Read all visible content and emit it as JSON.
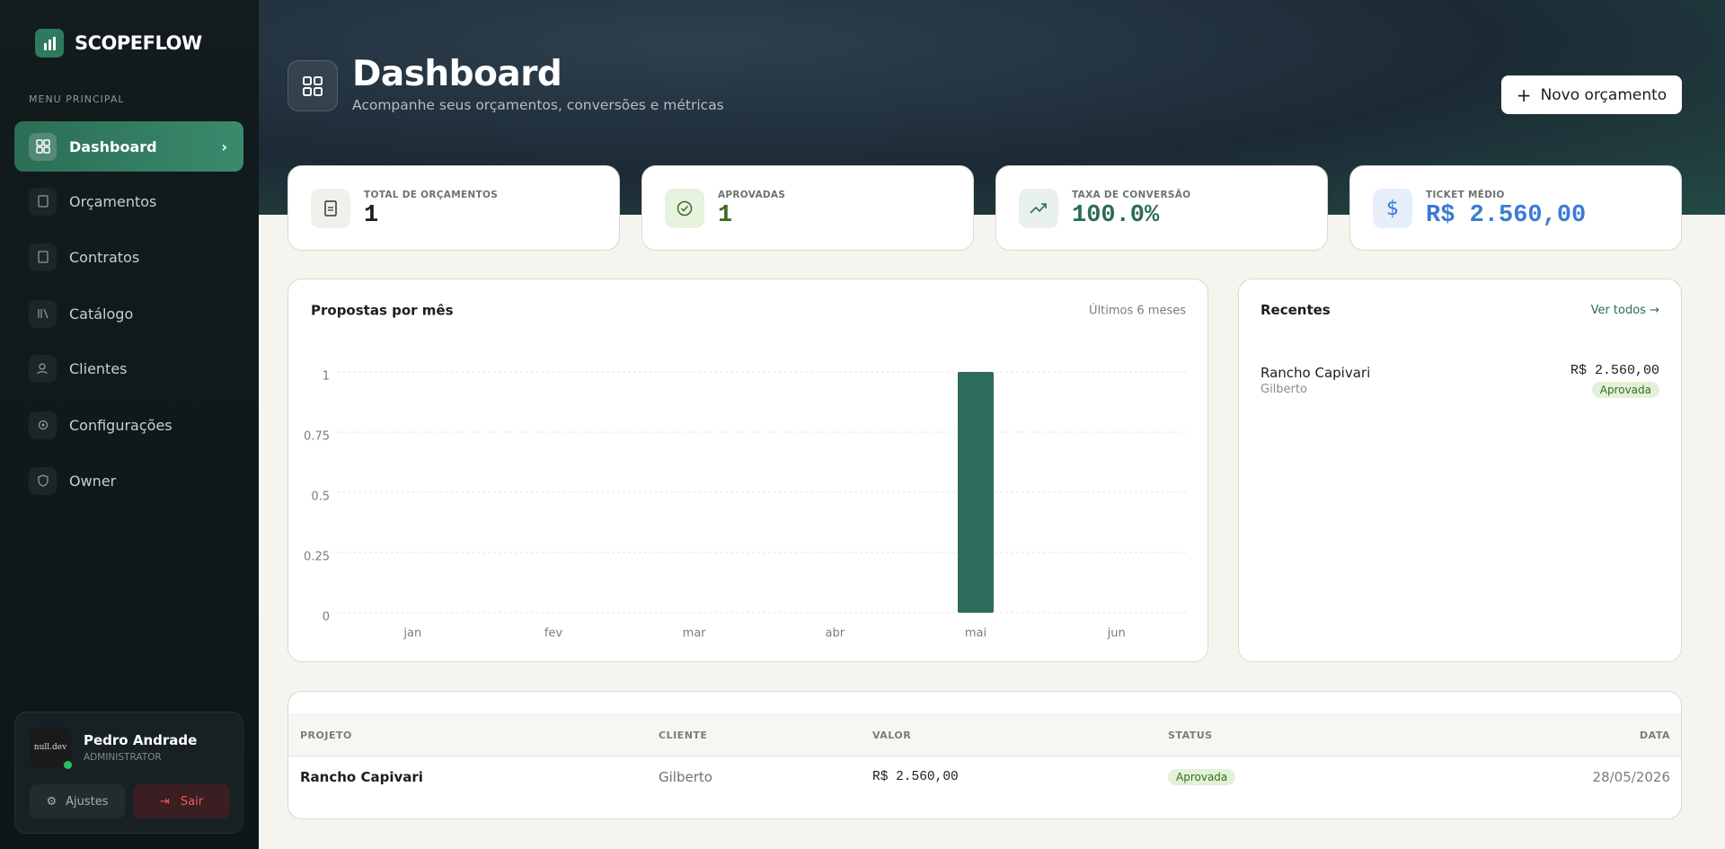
{
  "sidebar": {
    "brand": "SCOPEFLOW",
    "menu_label": "MENU PRINCIPAL",
    "menu": [
      "Dashboard",
      "Orçamentos",
      "Contratos",
      "Catálogo",
      "Clientes",
      "Configurações",
      "Owner"
    ],
    "user": {
      "avatar": "null.dev",
      "name": "Pedro Andrade",
      "role": "ADMINISTRATOR"
    },
    "settings": "Ajustes",
    "logout": "Sair"
  },
  "header": {
    "title": "Dashboard",
    "subtitle": "Acompanhe seus orçamentos, conversões e métricas",
    "button": "Novo orçamento"
  },
  "stats": [
    {
      "label": "TOTAL DE ORÇAMENTOS",
      "value": "1"
    },
    {
      "label": "APROVADAS",
      "value": "1"
    },
    {
      "label": "TAXA DE CONVERSÃO",
      "value": "100.0%"
    },
    {
      "label": "TICKET MÉDIO",
      "value": "R$ 2.560,00"
    }
  ],
  "chart_data": {
    "type": "bar",
    "title": "Propostas por mês",
    "subtitle": "Últimos 6 meses",
    "categories": [
      "jan",
      "fev",
      "mar",
      "abr",
      "mai",
      "jun"
    ],
    "values": [
      0,
      0,
      0,
      0,
      1,
      0
    ],
    "color": "#2d6b5a",
    "ylim": [
      0,
      1
    ],
    "yticks": [
      0,
      0.25,
      0.5,
      0.75,
      1
    ],
    "grid": true
  },
  "recents": {
    "title": "Recentes",
    "link": "Ver todos →",
    "items": [
      {
        "name": "Rancho Capivari",
        "client": "Gilberto",
        "value": "R$ 2.560,00",
        "status": "Aprovada"
      }
    ]
  },
  "table": {
    "columns": [
      "PROJETO",
      "CLIENTE",
      "VALOR",
      "STATUS",
      "DATA"
    ],
    "rows": [
      [
        "Rancho Capivari",
        "Gilberto",
        "R$ 2.560,00",
        "Aprovada",
        "28/05/2026"
      ]
    ]
  }
}
